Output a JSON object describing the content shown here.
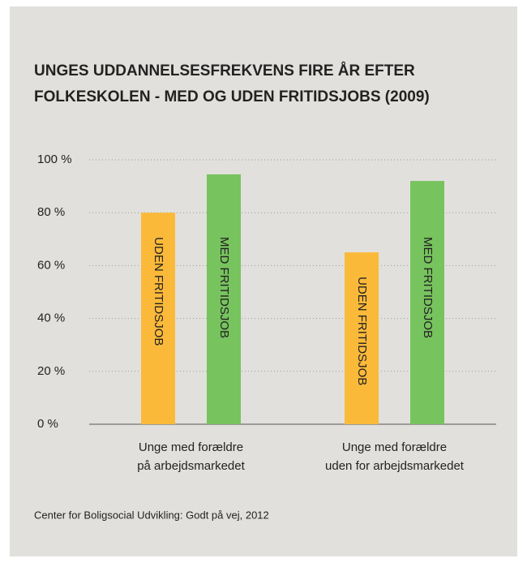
{
  "chart_data": {
    "type": "bar",
    "title": [
      "UNGES UDDANNELSESFREKVENS FIRE ÅR EFTER",
      "FOLKESKOLEN - MED OG UDEN FRITIDSJOBS (2009)"
    ],
    "categories": [
      [
        "Unge med forældre",
        "på arbejdsmarkedet"
      ],
      [
        "Unge med forældre",
        "uden for arbejdsmarkedet"
      ]
    ],
    "series": [
      {
        "name": "UDEN FRITIDSJOB",
        "color": "#fbb93a",
        "values": [
          80,
          65
        ]
      },
      {
        "name": "MED FRITIDSJOB",
        "color": "#77c35e",
        "values": [
          94.5,
          92
        ]
      }
    ],
    "ylim": [
      0,
      100
    ],
    "yticks": [
      {
        "value": 0,
        "label": "0 %"
      },
      {
        "value": 20,
        "label": "20 %"
      },
      {
        "value": 40,
        "label": "40 %"
      },
      {
        "value": 60,
        "label": "60 %"
      },
      {
        "value": 80,
        "label": "80 %"
      },
      {
        "value": 100,
        "label": "100 %"
      }
    ],
    "grid": true,
    "source": "Center for Boligsocial Udvikling: Godt på vej, 2012"
  }
}
